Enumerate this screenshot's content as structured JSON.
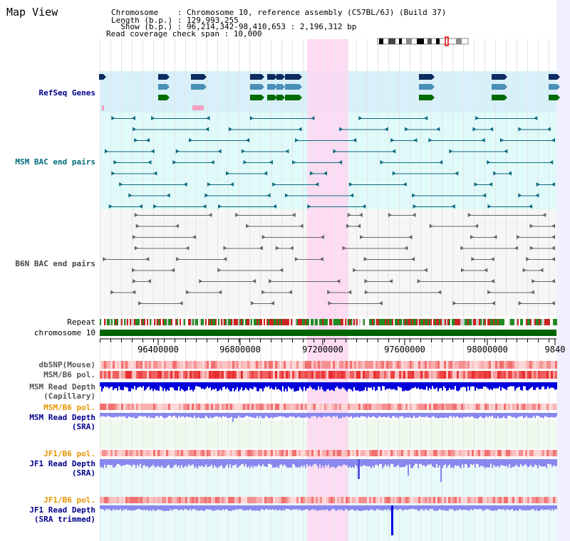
{
  "page_title": "Map View",
  "header": {
    "chromosome_label": "Chromosome    : ",
    "chromosome_value": "Chromosome 10, reference assembly (C57BL/6J) (Build 37)",
    "length_label": "Length (b.p.) : ",
    "length_value": "129,993,255",
    "show_label": "  Show (b.p.) : ",
    "show_value": "96,214,342-98,410,653 : 2,196,312 bp",
    "span_label": "Read coverage check span : ",
    "span_value": "10,000"
  },
  "tracks": {
    "refseq": "RefSeq Genes",
    "msm_bac": "MSM BAC end pairs",
    "b6n_bac": "B6N BAC end pairs",
    "repeat": "Repeat",
    "chromosome": "chromosome 10",
    "dbsnp": "dbSNP(Mouse)",
    "msm_b6_pol_1": "MSM/B6 pol.",
    "msm_depth_cap_1": "MSM Read Depth",
    "msm_depth_cap_2": "(Capillary)",
    "msm_b6_pol_2": "MSM/B6 pol.",
    "msm_depth_sra_1": "MSM Read Depth",
    "msm_depth_sra_2": "(SRA)",
    "jf1_b6_pol_1": "JF1/B6 pol.",
    "jf1_depth_sra_1": "JF1 Read Depth",
    "jf1_depth_sra_2": "(SRA)",
    "jf1_b6_pol_2": "JF1/B6 pol.",
    "jf1_depth_trim_1": "JF1 Read Depth",
    "jf1_depth_trim_2": "(SRA trimmed)"
  },
  "axis": {
    "ticks": [
      "96400000",
      "96800000",
      "97200000",
      "97600000",
      "98000000",
      "9840"
    ]
  },
  "colors": {
    "highlight": "#ffd6f2",
    "refseq_bg": "#d8f0fa",
    "msm_bg": "#e0fafa",
    "b6n_bg": "#f6f6f6",
    "chromosome_bar": "#006400",
    "dark_blue": "#0000dd",
    "light_blue": "#8888ee",
    "gene_navy": "#0d2b5e",
    "gene_teal": "#4a8fb5",
    "gene_green": "#006b00"
  }
}
